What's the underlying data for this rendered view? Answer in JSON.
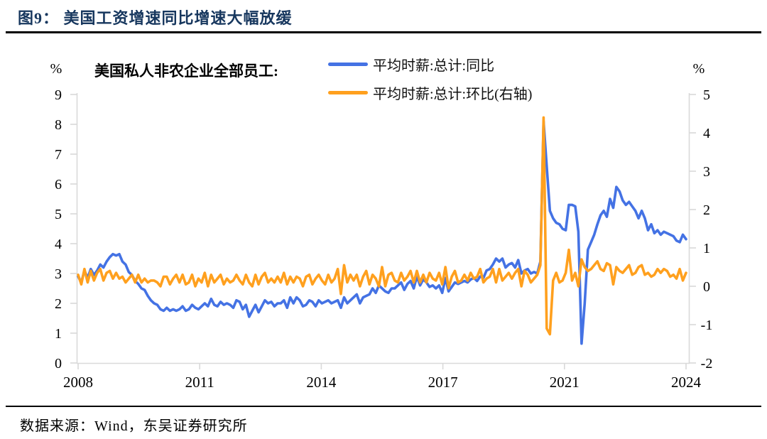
{
  "figure": {
    "title": "图9： 美国工资增速同比增速大幅放缓",
    "source": "数据来源：Wind，东吴证券研究所"
  },
  "colors": {
    "title_navy": "#17375e",
    "axis_gray": "#d9d9d9",
    "yoy_blue": "#4472e4",
    "mom_orange": "#ffa01e",
    "rule_black": "#000000"
  },
  "chart_data": {
    "type": "line",
    "title": "美国私人非农企业全部员工:",
    "x_start": "2008-01",
    "x_end": "2024-01",
    "x_freq": "monthly",
    "x_tick_labels": [
      "2008",
      "2011",
      "2014",
      "2017",
      "2021",
      "2024"
    ],
    "legend_position": "top",
    "grid": false,
    "axes": {
      "left": {
        "unit": "%",
        "min": 0,
        "max": 9,
        "ticks": [
          0,
          1,
          2,
          3,
          4,
          5,
          6,
          7,
          8,
          9
        ]
      },
      "right": {
        "unit": "%",
        "min": -2,
        "max": 5,
        "ticks": [
          -2,
          -1,
          0,
          1,
          2,
          3,
          4,
          5
        ]
      }
    },
    "series": [
      {
        "name": "平均时薪:总计:同比",
        "axis": "left",
        "color": "#4472e4",
        "values": [
          2.9,
          2.7,
          3.1,
          2.85,
          3.15,
          2.95,
          3.1,
          3.3,
          3.2,
          3.4,
          3.55,
          3.65,
          3.6,
          3.65,
          3.4,
          3.3,
          3.05,
          2.95,
          2.75,
          2.65,
          2.5,
          2.45,
          2.25,
          2.1,
          2.0,
          1.95,
          1.8,
          1.75,
          1.85,
          1.75,
          1.8,
          1.75,
          1.8,
          1.9,
          1.75,
          1.8,
          1.95,
          1.85,
          1.8,
          1.9,
          2.0,
          1.9,
          2.15,
          1.95,
          1.9,
          2.05,
          1.95,
          2.0,
          1.95,
          1.85,
          2.1,
          2.05,
          1.8,
          1.95,
          1.55,
          1.75,
          1.95,
          1.7,
          1.9,
          2.1,
          2.0,
          2.05,
          1.9,
          2.0,
          2.0,
          2.1,
          1.85,
          2.2,
          2.0,
          2.2,
          2.1,
          1.9,
          1.95,
          2.1,
          2.05,
          1.9,
          2.1,
          2.0,
          2.05,
          2.1,
          2.0,
          2.05,
          2.1,
          1.85,
          2.2,
          2.0,
          2.1,
          2.2,
          2.3,
          2.0,
          2.2,
          2.25,
          2.3,
          2.5,
          2.35,
          2.6,
          2.5,
          2.4,
          2.35,
          2.5,
          2.5,
          2.6,
          2.7,
          2.45,
          2.65,
          2.75,
          2.5,
          2.9,
          2.6,
          2.8,
          2.7,
          2.55,
          2.6,
          2.5,
          2.6,
          2.35,
          2.85,
          2.4,
          2.55,
          2.7,
          2.65,
          2.7,
          2.75,
          2.7,
          2.8,
          2.85,
          2.75,
          2.9,
          2.85,
          3.1,
          3.15,
          3.3,
          3.5,
          3.4,
          3.5,
          3.2,
          3.3,
          3.35,
          3.2,
          3.45,
          3.0,
          3.1,
          3.15,
          3.0,
          3.05,
          3.0,
          3.4,
          8.1,
          6.6,
          5.1,
          4.85,
          4.7,
          4.65,
          4.5,
          4.45,
          5.3,
          5.3,
          5.25,
          4.4,
          0.65,
          2.0,
          3.8,
          4.05,
          4.3,
          4.65,
          4.95,
          5.1,
          4.9,
          5.5,
          5.2,
          5.9,
          5.75,
          5.45,
          5.3,
          5.4,
          5.25,
          5.1,
          4.85,
          5.1,
          4.85,
          4.45,
          4.65,
          4.35,
          4.45,
          4.3,
          4.4,
          4.35,
          4.3,
          4.25,
          4.1,
          4.05,
          4.3,
          4.15
        ]
      },
      {
        "name": "平均时薪:总计:环比(右轴)",
        "axis": "right",
        "color": "#ffa01e",
        "values": [
          0.3,
          0.05,
          0.45,
          0.1,
          0.4,
          0.15,
          0.35,
          0.45,
          0.15,
          0.35,
          0.4,
          0.2,
          0.35,
          0.2,
          0.25,
          0.1,
          0.2,
          0.3,
          0.1,
          0.3,
          0.1,
          0.2,
          0.1,
          0.15,
          0.15,
          0.1,
          0.0,
          0.25,
          0.25,
          0.05,
          0.2,
          0.3,
          0.1,
          0.3,
          0.05,
          0.1,
          0.3,
          0.0,
          0.2,
          0.1,
          0.35,
          0.0,
          0.3,
          0.1,
          0.2,
          0.3,
          0.05,
          0.2,
          0.1,
          0.15,
          0.3,
          0.15,
          0.05,
          0.3,
          0.1,
          0.0,
          0.3,
          0.05,
          0.25,
          0.35,
          0.1,
          0.2,
          0.1,
          0.25,
          0.1,
          0.35,
          0.05,
          0.25,
          0.1,
          0.25,
          0.2,
          0.0,
          0.25,
          0.3,
          0.05,
          0.2,
          0.3,
          0.15,
          0.05,
          0.3,
          0.1,
          0.2,
          0.45,
          -0.2,
          0.55,
          0.1,
          0.3,
          0.15,
          0.3,
          0.0,
          0.25,
          0.4,
          0.05,
          0.3,
          0.2,
          0.0,
          0.5,
          0.0,
          0.3,
          0.35,
          0.15,
          0.1,
          0.35,
          0.15,
          0.25,
          0.4,
          0.1,
          0.4,
          0.1,
          0.3,
          0.1,
          0.35,
          0.2,
          0.15,
          0.35,
          0.05,
          0.5,
          -0.05,
          0.25,
          0.4,
          0.1,
          0.15,
          0.3,
          0.15,
          0.35,
          0.2,
          0.25,
          0.45,
          0.1,
          0.2,
          0.25,
          0.45,
          0.1,
          0.45,
          0.15,
          0.25,
          0.35,
          0.2,
          0.35,
          0.45,
          0.0,
          0.4,
          0.3,
          0.1,
          0.2,
          0.3,
          0.55,
          4.4,
          -1.1,
          -1.25,
          0.15,
          0.35,
          0.1,
          0.15,
          0.35,
          0.95,
          0.15,
          0.35,
          0.0,
          0.7,
          0.5,
          0.4,
          0.45,
          0.55,
          0.65,
          0.45,
          0.4,
          0.6,
          0.55,
          0.05,
          0.5,
          0.4,
          0.35,
          0.45,
          0.55,
          0.3,
          0.35,
          0.5,
          0.55,
          0.3,
          0.35,
          0.25,
          0.3,
          0.45,
          0.35,
          0.45,
          0.4,
          0.25,
          0.3,
          0.2,
          0.45,
          0.15,
          0.35
        ]
      }
    ]
  }
}
